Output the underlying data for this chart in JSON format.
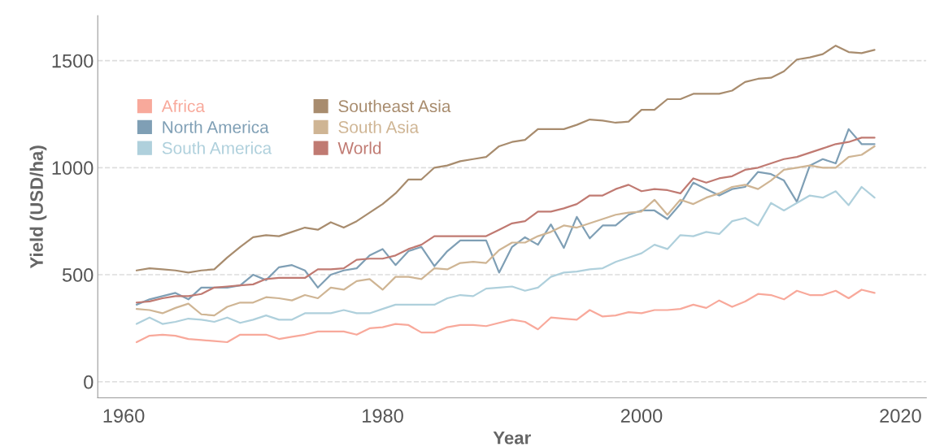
{
  "chart_data": {
    "type": "line",
    "xlabel": "Year",
    "ylabel": "Yield (USD/ha)",
    "x": [
      1961,
      1962,
      1963,
      1964,
      1965,
      1966,
      1967,
      1968,
      1969,
      1970,
      1971,
      1972,
      1973,
      1974,
      1975,
      1976,
      1977,
      1978,
      1979,
      1980,
      1981,
      1982,
      1983,
      1984,
      1985,
      1986,
      1987,
      1988,
      1989,
      1990,
      1991,
      1992,
      1993,
      1994,
      1995,
      1996,
      1997,
      1998,
      1999,
      2000,
      2001,
      2002,
      2003,
      2004,
      2005,
      2006,
      2007,
      2008,
      2009,
      2010,
      2011,
      2012,
      2013,
      2014,
      2015,
      2016,
      2017,
      2018
    ],
    "series": [
      {
        "name": "Africa",
        "color": "#f8a99b",
        "values": [
          185,
          215,
          220,
          215,
          200,
          195,
          190,
          185,
          220,
          220,
          220,
          200,
          210,
          220,
          235,
          235,
          235,
          220,
          250,
          255,
          270,
          265,
          230,
          230,
          255,
          265,
          265,
          260,
          275,
          290,
          280,
          245,
          300,
          295,
          290,
          335,
          305,
          310,
          325,
          320,
          335,
          335,
          340,
          360,
          345,
          380,
          350,
          375,
          410,
          405,
          385,
          425,
          405,
          405,
          425,
          390,
          430,
          415
        ]
      },
      {
        "name": "North America",
        "color": "#7f9fb5",
        "values": [
          360,
          385,
          400,
          415,
          385,
          440,
          440,
          440,
          450,
          500,
          475,
          535,
          545,
          520,
          440,
          500,
          520,
          530,
          590,
          620,
          545,
          610,
          630,
          540,
          610,
          660,
          660,
          660,
          510,
          630,
          675,
          640,
          735,
          625,
          770,
          670,
          730,
          730,
          780,
          800,
          800,
          760,
          830,
          930,
          900,
          870,
          900,
          910,
          980,
          970,
          940,
          840,
          1010,
          1040,
          1020,
          1180,
          1110,
          1110
        ]
      },
      {
        "name": "South America",
        "color": "#afd0dc",
        "values": [
          270,
          300,
          270,
          280,
          295,
          290,
          280,
          300,
          275,
          290,
          310,
          290,
          290,
          320,
          320,
          320,
          335,
          320,
          320,
          340,
          360,
          360,
          360,
          360,
          390,
          405,
          400,
          435,
          440,
          445,
          425,
          440,
          490,
          510,
          515,
          525,
          530,
          560,
          580,
          600,
          640,
          620,
          685,
          680,
          700,
          690,
          750,
          765,
          730,
          835,
          800,
          835,
          870,
          860,
          890,
          825,
          910,
          860
        ]
      },
      {
        "name": "Southeast Asia",
        "color": "#a88c6e",
        "values": [
          520,
          530,
          525,
          520,
          510,
          520,
          525,
          580,
          630,
          675,
          685,
          680,
          700,
          720,
          710,
          745,
          720,
          750,
          790,
          830,
          880,
          945,
          945,
          1000,
          1010,
          1030,
          1040,
          1050,
          1100,
          1120,
          1130,
          1180,
          1180,
          1180,
          1200,
          1225,
          1220,
          1210,
          1215,
          1270,
          1270,
          1320,
          1320,
          1345,
          1345,
          1345,
          1360,
          1400,
          1415,
          1420,
          1450,
          1505,
          1515,
          1530,
          1570,
          1540,
          1535,
          1550
        ]
      },
      {
        "name": "South Asia",
        "color": "#cfb594",
        "values": [
          340,
          335,
          320,
          345,
          365,
          315,
          310,
          350,
          370,
          370,
          395,
          390,
          380,
          405,
          390,
          440,
          430,
          470,
          480,
          430,
          490,
          490,
          480,
          530,
          525,
          555,
          560,
          555,
          615,
          650,
          650,
          680,
          700,
          730,
          720,
          740,
          760,
          780,
          790,
          795,
          850,
          780,
          850,
          830,
          860,
          880,
          910,
          920,
          900,
          940,
          990,
          1000,
          1010,
          1000,
          1000,
          1050,
          1060,
          1100
        ]
      },
      {
        "name": "World",
        "color": "#c07a72",
        "values": [
          370,
          375,
          390,
          400,
          400,
          410,
          440,
          445,
          450,
          455,
          480,
          485,
          485,
          485,
          525,
          525,
          530,
          570,
          575,
          575,
          590,
          620,
          640,
          680,
          680,
          680,
          680,
          680,
          710,
          740,
          750,
          795,
          795,
          810,
          830,
          870,
          870,
          900,
          920,
          890,
          900,
          895,
          880,
          950,
          930,
          950,
          960,
          990,
          1000,
          1020,
          1040,
          1050,
          1070,
          1090,
          1110,
          1120,
          1140,
          1140
        ]
      }
    ],
    "xlim": [
      1958,
      2022
    ],
    "xticks": [
      1960,
      1980,
      2000,
      2020
    ],
    "ylim": [
      -75,
      1710
    ],
    "yticks": [
      0,
      500,
      1000,
      1500
    ],
    "grid": "y",
    "legend": "top left",
    "line_style": "solid"
  }
}
